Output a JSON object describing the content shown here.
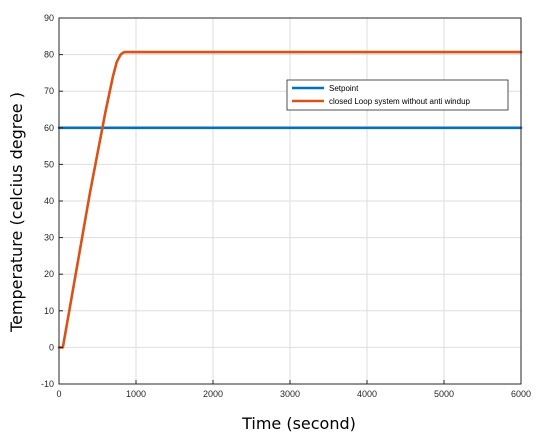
{
  "chart_data": {
    "type": "line",
    "title": "",
    "xlabel": "Time (second)",
    "ylabel": "Temperature (celcius degree )",
    "xlim": [
      0,
      6000
    ],
    "ylim": [
      -10,
      90
    ],
    "grid": true,
    "legend_position": "top-right",
    "x_ticks": [
      0,
      1000,
      2000,
      3000,
      4000,
      5000,
      6000
    ],
    "y_ticks": [
      -10,
      0,
      10,
      20,
      30,
      40,
      50,
      60,
      70,
      80,
      90
    ],
    "series": [
      {
        "name": "Setpoint",
        "color": "#0072BD",
        "x": [
          0,
          6000
        ],
        "y": [
          60,
          60
        ]
      },
      {
        "name": "closed Loop system without anti windup",
        "color": "#D95319",
        "x": [
          0,
          50,
          100,
          200,
          300,
          400,
          500,
          600,
          700,
          750,
          800,
          830,
          860,
          900,
          1000,
          2000,
          3000,
          4000,
          5000,
          6000
        ],
        "y": [
          0,
          0,
          6,
          18,
          30,
          42,
          53,
          64,
          74,
          78,
          80,
          80.5,
          80.7,
          80.7,
          80.7,
          80.7,
          80.7,
          80.7,
          80.7,
          80.7
        ]
      }
    ]
  }
}
